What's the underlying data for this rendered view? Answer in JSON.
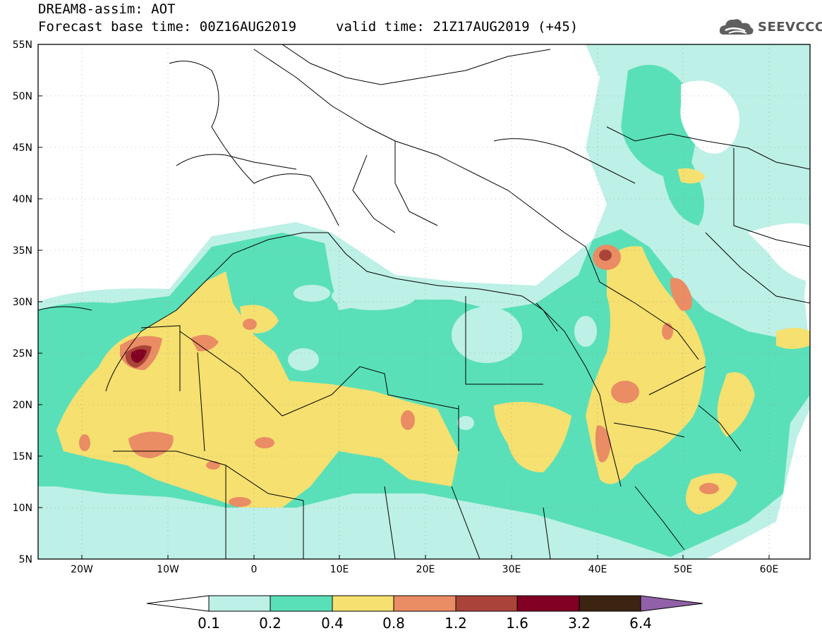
{
  "header": {
    "title": "DREAM8-assim: AOT",
    "base_time": "Forecast base time: 00Z16AUG2019",
    "valid_time": "valid time: 21Z17AUG2019 (+45)",
    "logo_text": "SEEVCCC",
    "logo_icon": "cloud-icon"
  },
  "map": {
    "lat_labels": [
      "55N",
      "50N",
      "45N",
      "40N",
      "35N",
      "30N",
      "25N",
      "20N",
      "15N",
      "10N",
      "5N"
    ],
    "lon_labels": [
      "20W",
      "10W",
      "0",
      "10E",
      "20E",
      "30E",
      "40E",
      "50E",
      "60E"
    ],
    "colors": {
      "ocean": "#ffffff",
      "land_outline": "#000000",
      "gridline": "#888888"
    }
  },
  "colorbar": {
    "tick_labels": [
      "0.1",
      "0.2",
      "0.4",
      "0.8",
      "1.2",
      "1.6",
      "3.2",
      "6.4"
    ],
    "colors": [
      "#ffffff",
      "#bdf0e6",
      "#5ae0b8",
      "#f5e070",
      "#ea8c64",
      "#aa4438",
      "#820024",
      "#3c2412",
      "#9060a8"
    ]
  }
}
